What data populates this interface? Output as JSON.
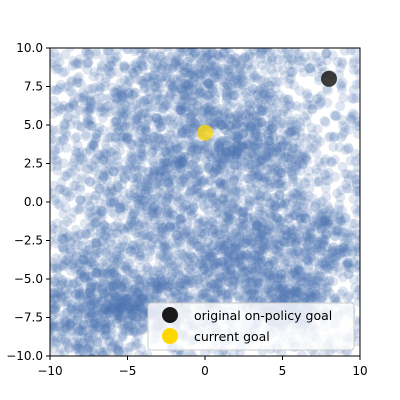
{
  "chart_data": {
    "type": "scatter",
    "title": "",
    "xlabel": "",
    "ylabel": "",
    "xlim": [
      -10,
      10
    ],
    "ylim": [
      -10,
      10
    ],
    "xticks": [
      -10,
      -5,
      0,
      5,
      10
    ],
    "yticks": [
      -10.0,
      -7.5,
      -5.0,
      -2.5,
      0.0,
      2.5,
      5.0,
      7.5,
      10.0
    ],
    "xtick_labels": [
      "−10",
      "−5",
      "0",
      "5",
      "10"
    ],
    "ytick_labels": [
      "−10.0",
      "−7.5",
      "−5.0",
      "−2.5",
      "0.0",
      "2.5",
      "5.0",
      "7.5",
      "10.0"
    ],
    "grid": false,
    "legend_position": "lower-right",
    "series": [
      {
        "name": "",
        "kind": "visited-states-cloud",
        "color": "#4c72b0",
        "alpha": 0.18,
        "dense_regions": [
          {
            "center": [
              -2.5,
              3.0
            ],
            "spread": [
              2.5,
              2.5
            ]
          },
          {
            "center": [
              0.0,
              6.0
            ],
            "spread": [
              2.0,
              2.5
            ]
          },
          {
            "center": [
              -3.0,
              -0.5
            ],
            "spread": [
              2.5,
              2.0
            ]
          },
          {
            "center": [
              4.5,
              0.5
            ],
            "spread": [
              2.0,
              3.0
            ]
          },
          {
            "center": [
              0.5,
              8.5
            ],
            "spread": [
              3.5,
              1.5
            ]
          },
          {
            "center": [
              2.5,
              -3.5
            ],
            "spread": [
              1.5,
              1.5
            ]
          },
          {
            "center": [
              -7.5,
              -4.5
            ],
            "spread": [
              2.0,
              2.0
            ]
          },
          {
            "center": [
              -5.0,
              -6.5
            ],
            "spread": [
              1.5,
              1.0
            ]
          },
          {
            "center": [
              5.5,
              -6.5
            ],
            "spread": [
              1.2,
              1.0
            ]
          },
          {
            "center": [
              -0.5,
              -5.0
            ],
            "spread": [
              1.5,
              2.0
            ]
          },
          {
            "center": [
              7.5,
              -2.5
            ],
            "spread": [
              2.0,
              1.5
            ]
          },
          {
            "center": [
              3.0,
              4.0
            ],
            "spread": [
              2.0,
              1.5
            ]
          },
          {
            "center": [
              -6.5,
              6.5
            ],
            "spread": [
              3.0,
              3.0
            ]
          },
          {
            "center": [
              -8.0,
              -8.5
            ],
            "spread": [
              2.0,
              1.5
            ]
          }
        ]
      },
      {
        "name": "original on-policy goal",
        "color": "#1a1a1a",
        "x": [
          8.0
        ],
        "y": [
          8.0
        ]
      },
      {
        "name": "current goal",
        "color": "#ffd700",
        "x": [
          0.0
        ],
        "y": [
          4.5
        ]
      }
    ],
    "legend": [
      {
        "label": "original on-policy goal",
        "color": "#1a1a1a"
      },
      {
        "label": "current goal",
        "color": "#ffd700"
      }
    ]
  }
}
